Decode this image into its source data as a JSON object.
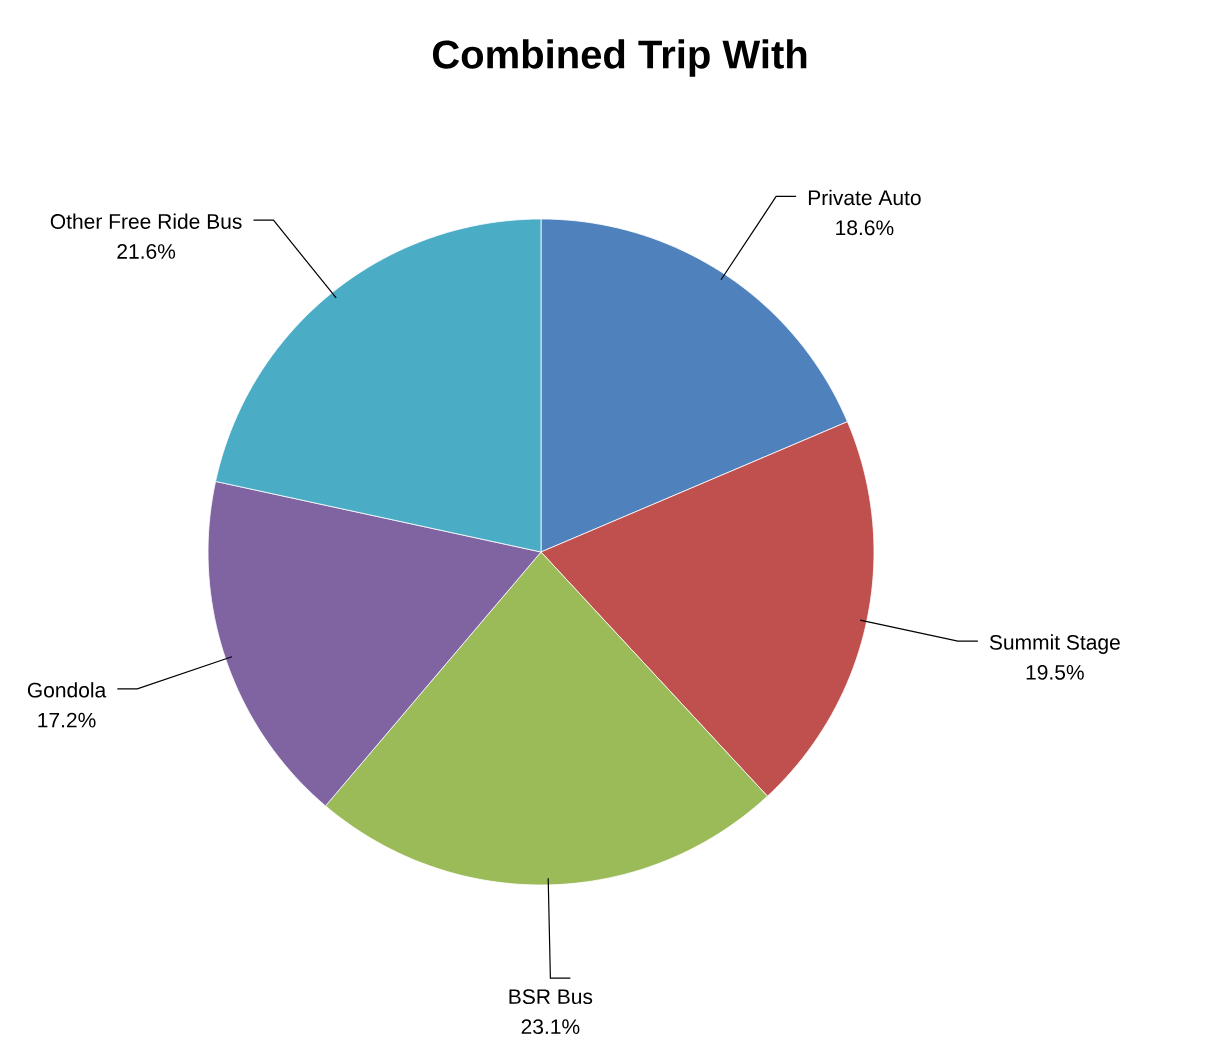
{
  "chart_data": {
    "type": "pie",
    "title": "Combined Trip With",
    "categories": [
      "Private Auto",
      "Summit Stage",
      "BSR Bus",
      "Gondola",
      "Other Free Ride Bus"
    ],
    "values": [
      18.6,
      19.5,
      23.1,
      17.2,
      21.6
    ],
    "colors": [
      "#4f81bd",
      "#c0504d",
      "#9bbb59",
      "#8064a2",
      "#4bacc6"
    ],
    "value_labels": [
      "18.6%",
      "19.5%",
      "23.1%",
      "17.2%",
      "21.6%"
    ]
  }
}
